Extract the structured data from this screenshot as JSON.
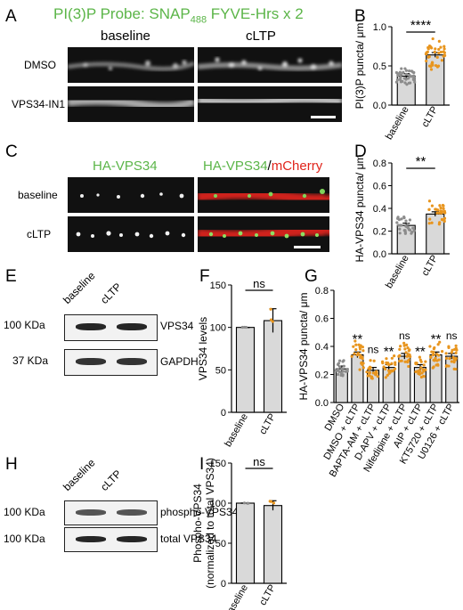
{
  "panels": {
    "A": {
      "letter": "A",
      "probe_title_prefix": "PI(3)P Probe: SNAP",
      "probe_title_sub": "488",
      "probe_title_suffix": " FYVE-Hrs x 2",
      "col_baseline": "baseline",
      "col_cltp": "cLTP",
      "row_dmso": "DMSO",
      "row_vps34": "VPS34-IN1"
    },
    "B": {
      "letter": "B"
    },
    "C": {
      "letter": "C",
      "col_ha": "HA-VPS34",
      "col_merge_green": "HA-VPS34",
      "col_merge_sep": "/",
      "col_merge_red": "mCherry",
      "row_baseline": "baseline",
      "row_cltp": "cLTP"
    },
    "D": {
      "letter": "D"
    },
    "E": {
      "letter": "E",
      "lane_baseline": "baseline",
      "lane_cltp": "cLTP",
      "mw_100": "100 KDa",
      "mw_37": "37 KDa",
      "band_vps34": "VPS34",
      "band_gapdh": "GAPDH"
    },
    "F": {
      "letter": "F"
    },
    "G": {
      "letter": "G"
    },
    "H": {
      "letter": "H",
      "lane_baseline": "baseline",
      "lane_cltp": "cLTP",
      "mw_100a": "100 KDa",
      "mw_100b": "100 KDa",
      "band_phospho": "phospho-VPS34",
      "band_total": "total VPS34"
    },
    "I": {
      "letter": "I"
    }
  },
  "colors": {
    "orange": "#e8951e",
    "grey": "#8c8c8c",
    "green": "#5bb548",
    "red": "#e0241b",
    "bar_fill": "#d9d9d9"
  },
  "chart_data": [
    {
      "panel": "B",
      "type": "bar",
      "categories": [
        "baseline",
        "cLTP"
      ],
      "values": [
        0.37,
        0.64
      ],
      "errors": [
        0.03,
        0.03
      ],
      "ylabel": "PI(3)P puncta/ μm",
      "ylim": [
        0,
        1.0
      ],
      "yticks": [
        "0.0",
        "0.5",
        "1.0"
      ],
      "significance": "****"
    },
    {
      "panel": "D",
      "type": "bar",
      "categories": [
        "baseline",
        "cLTP"
      ],
      "values": [
        0.25,
        0.35
      ],
      "errors": [
        0.02,
        0.02
      ],
      "ylabel": "HA-VPS34 puncta/ μm",
      "ylim": [
        0,
        0.8
      ],
      "yticks": [
        "0.0",
        "0.2",
        "0.4",
        "0.6",
        "0.8"
      ],
      "significance": "**"
    },
    {
      "panel": "F",
      "type": "bar",
      "categories": [
        "baseline",
        "cLTP"
      ],
      "values": [
        100,
        108
      ],
      "errors": [
        0,
        14
      ],
      "ylabel": "VPS34 levels",
      "ylim": [
        0,
        150
      ],
      "yticks": [
        "0",
        "50",
        "100",
        "150"
      ],
      "significance": "ns"
    },
    {
      "panel": "G",
      "type": "bar",
      "categories": [
        "DMSO",
        "DMSO + cLTP",
        "BAPTA-AM + cLTP",
        "D-APV + cLTP",
        "Nifedipine + cLTP",
        "AIP + cLTP",
        "KT5720 + cLTP",
        "U0126 + cLTP"
      ],
      "values": [
        0.24,
        0.34,
        0.23,
        0.25,
        0.33,
        0.25,
        0.34,
        0.33
      ],
      "errors": [
        0.02,
        0.02,
        0.02,
        0.02,
        0.02,
        0.02,
        0.02,
        0.02
      ],
      "ylabel": "HA-VPS34 puncta/ μm",
      "ylim": [
        0,
        0.8
      ],
      "yticks": [
        "0.0",
        "0.2",
        "0.4",
        "0.6",
        "0.8"
      ],
      "annotations": [
        "",
        "**",
        "ns",
        "**",
        "ns",
        "**",
        "**",
        "ns"
      ]
    },
    {
      "panel": "I",
      "type": "bar",
      "categories": [
        "baseline",
        "cLTP"
      ],
      "values": [
        100,
        97
      ],
      "errors": [
        0,
        6
      ],
      "ylabel": "Phospho-VPS34 (normalized to total VPS34)",
      "ylabel_line1": "Phospho-VPS34",
      "ylabel_line2": "(normalized to total VPS34)",
      "ylim": [
        0,
        150
      ],
      "yticks": [
        "0",
        "50",
        "100",
        "150"
      ],
      "significance": "ns"
    }
  ]
}
